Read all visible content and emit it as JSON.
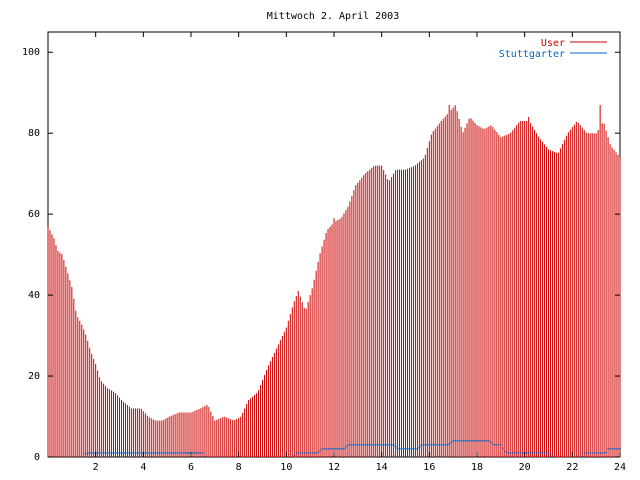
{
  "chart_data": {
    "type": "bar",
    "title": "Mittwoch 2. April 2003",
    "xlabel": "",
    "ylabel": "",
    "xlim": [
      0,
      24
    ],
    "ylim": [
      0,
      105
    ],
    "x_ticks": [
      "2",
      "4",
      "6",
      "8",
      "10",
      "12",
      "14",
      "16",
      "18",
      "20",
      "22",
      "24"
    ],
    "y_ticks": [
      "0",
      "20",
      "40",
      "60",
      "80",
      "100"
    ],
    "grid": false,
    "legend_position": "top-right",
    "bin_minutes": 5,
    "series": [
      {
        "name": "User",
        "color": "#cc0000",
        "style": "impulses",
        "keypoints": [
          [
            0.0,
            57
          ],
          [
            0.25,
            54
          ],
          [
            0.4,
            51
          ],
          [
            0.6,
            50
          ],
          [
            0.8,
            46
          ],
          [
            1.0,
            42
          ],
          [
            1.2,
            35
          ],
          [
            1.4,
            33
          ],
          [
            1.6,
            30
          ],
          [
            1.8,
            26
          ],
          [
            2.0,
            23
          ],
          [
            2.2,
            19
          ],
          [
            2.5,
            17
          ],
          [
            2.8,
            16
          ],
          [
            3.1,
            14
          ],
          [
            3.5,
            12
          ],
          [
            3.9,
            12
          ],
          [
            4.2,
            10
          ],
          [
            4.5,
            9
          ],
          [
            4.8,
            9
          ],
          [
            5.1,
            10
          ],
          [
            5.5,
            11
          ],
          [
            6.0,
            11
          ],
          [
            6.4,
            12
          ],
          [
            6.7,
            13
          ],
          [
            7.0,
            9
          ],
          [
            7.4,
            10
          ],
          [
            7.8,
            9
          ],
          [
            8.1,
            10
          ],
          [
            8.4,
            14
          ],
          [
            8.8,
            16
          ],
          [
            9.2,
            22
          ],
          [
            9.6,
            27
          ],
          [
            10.0,
            32
          ],
          [
            10.3,
            38
          ],
          [
            10.5,
            41
          ],
          [
            10.8,
            36
          ],
          [
            11.1,
            42
          ],
          [
            11.4,
            50
          ],
          [
            11.7,
            56
          ],
          [
            12.0,
            58
          ],
          [
            12.3,
            59
          ],
          [
            12.6,
            62
          ],
          [
            12.9,
            67
          ],
          [
            13.3,
            70
          ],
          [
            13.7,
            72
          ],
          [
            14.0,
            72
          ],
          [
            14.3,
            68
          ],
          [
            14.6,
            71
          ],
          [
            15.0,
            71
          ],
          [
            15.4,
            72
          ],
          [
            15.8,
            74
          ],
          [
            16.1,
            80
          ],
          [
            16.5,
            83
          ],
          [
            16.8,
            85
          ],
          [
            17.1,
            87
          ],
          [
            17.4,
            80
          ],
          [
            17.7,
            84
          ],
          [
            18.0,
            82
          ],
          [
            18.3,
            81
          ],
          [
            18.6,
            82
          ],
          [
            19.0,
            79
          ],
          [
            19.4,
            80
          ],
          [
            19.8,
            83
          ],
          [
            20.2,
            83
          ],
          [
            20.6,
            79
          ],
          [
            21.0,
            76
          ],
          [
            21.4,
            75
          ],
          [
            21.8,
            80
          ],
          [
            22.2,
            83
          ],
          [
            22.6,
            80
          ],
          [
            23.0,
            80
          ],
          [
            23.3,
            83
          ],
          [
            23.6,
            77
          ],
          [
            24.0,
            74
          ]
        ],
        "spikes": [
          [
            12.0,
            59
          ],
          [
            20.2,
            84
          ],
          [
            23.15,
            87
          ],
          [
            16.8,
            87
          ]
        ]
      },
      {
        "name": "Stuttgarter",
        "color": "#0066cc",
        "style": "impulses",
        "keypoints": [
          [
            0.0,
            0
          ],
          [
            1.5,
            0
          ],
          [
            1.6,
            1
          ],
          [
            6.5,
            1
          ],
          [
            6.6,
            0
          ],
          [
            10.3,
            0
          ],
          [
            10.4,
            1
          ],
          [
            11.3,
            1
          ],
          [
            11.5,
            2
          ],
          [
            12.0,
            2
          ],
          [
            12.4,
            2
          ],
          [
            12.6,
            3
          ],
          [
            14.5,
            3
          ],
          [
            14.7,
            2
          ],
          [
            15.5,
            2
          ],
          [
            15.7,
            3
          ],
          [
            16.8,
            3
          ],
          [
            17.0,
            4
          ],
          [
            18.5,
            4
          ],
          [
            18.7,
            3
          ],
          [
            19.0,
            3
          ],
          [
            19.2,
            1
          ],
          [
            21.0,
            1
          ],
          [
            21.2,
            0
          ],
          [
            22.4,
            0
          ],
          [
            22.5,
            1
          ],
          [
            23.4,
            1
          ],
          [
            23.5,
            2
          ],
          [
            24.0,
            2
          ]
        ]
      }
    ]
  }
}
